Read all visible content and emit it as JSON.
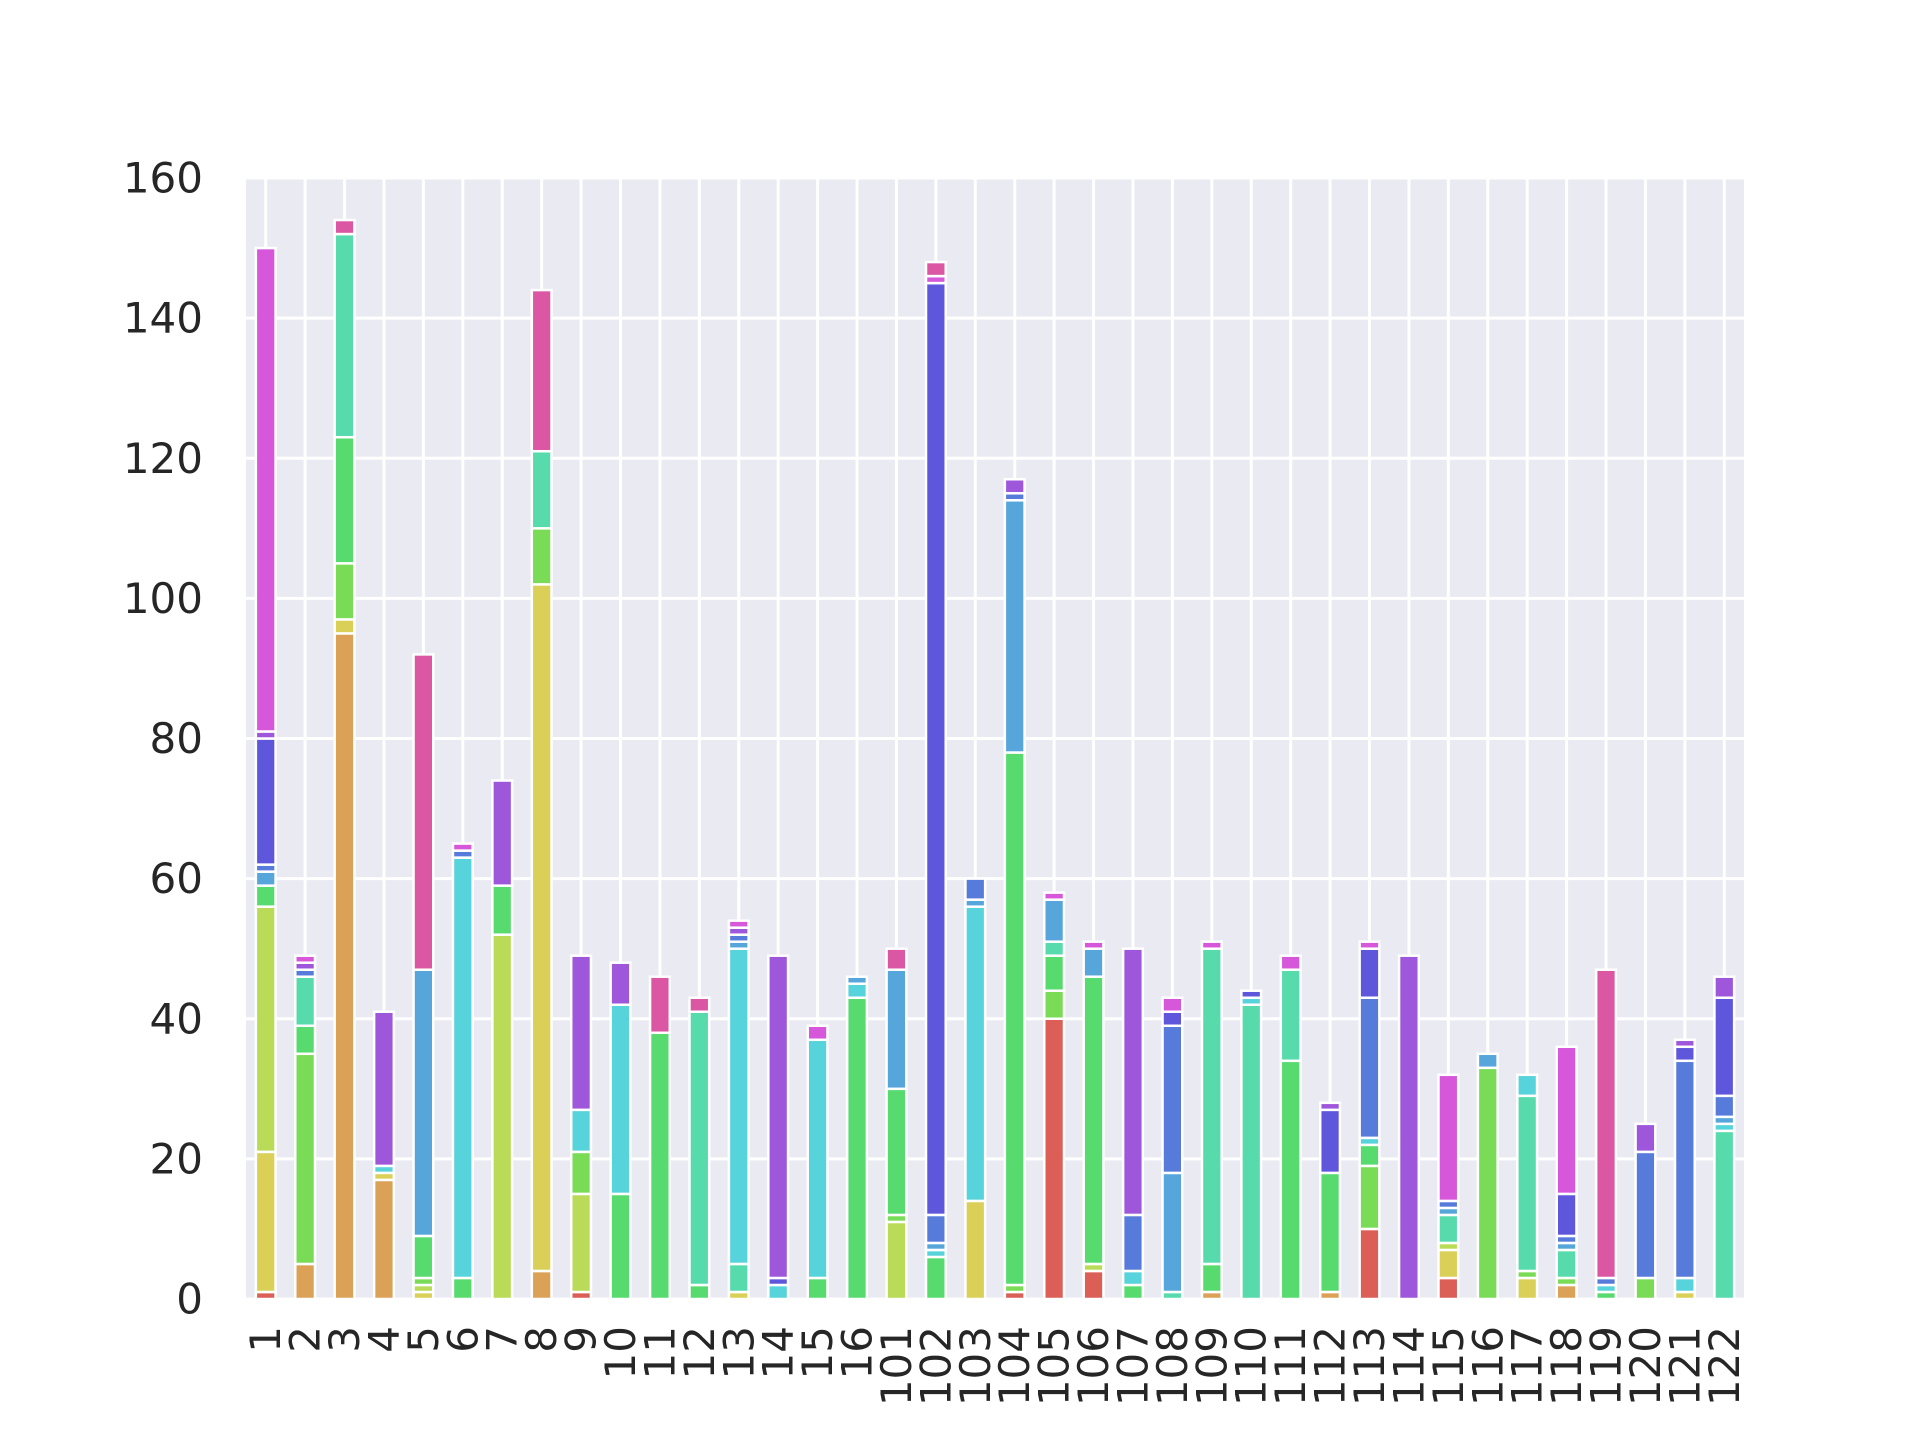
{
  "chart_data": {
    "type": "bar",
    "stacked": true,
    "grid": true,
    "background": "#eaeaf2",
    "categories": [
      "1",
      "2",
      "3",
      "4",
      "5",
      "6",
      "7",
      "8",
      "9",
      "10",
      "11",
      "12",
      "13",
      "14",
      "15",
      "16",
      "101",
      "102",
      "103",
      "104",
      "105",
      "106",
      "107",
      "108",
      "109",
      "110",
      "111",
      "112",
      "113",
      "114",
      "115",
      "116",
      "117",
      "118",
      "119",
      "120",
      "121",
      "122"
    ],
    "ylim": [
      0,
      160
    ],
    "yticks": [
      0,
      20,
      40,
      60,
      80,
      100,
      120,
      140,
      160
    ],
    "palette": [
      "#db5f57",
      "#dba157",
      "#dbd057",
      "#b9db57",
      "#7adb57",
      "#57db6f",
      "#57dbad",
      "#57d3db",
      "#57a6db",
      "#577bdb",
      "#5f57db",
      "#9e57db",
      "#d757db",
      "#db57a3"
    ],
    "stacks": [
      [
        [
          0,
          1
        ],
        [
          2,
          20
        ],
        [
          3,
          35
        ],
        [
          5,
          3
        ],
        [
          8,
          2
        ],
        [
          9,
          1
        ],
        [
          10,
          18
        ],
        [
          11,
          1
        ],
        [
          12,
          69
        ]
      ],
      [
        [
          1,
          5
        ],
        [
          4,
          30
        ],
        [
          5,
          4
        ],
        [
          6,
          7
        ],
        [
          9,
          1
        ],
        [
          11,
          1
        ],
        [
          12,
          1
        ]
      ],
      [
        [
          1,
          95
        ],
        [
          2,
          2
        ],
        [
          4,
          8
        ],
        [
          5,
          18
        ],
        [
          6,
          29
        ],
        [
          13,
          2
        ]
      ],
      [
        [
          1,
          17
        ],
        [
          2,
          1
        ],
        [
          7,
          1
        ],
        [
          11,
          22
        ]
      ],
      [
        [
          2,
          1
        ],
        [
          3,
          1
        ],
        [
          4,
          1
        ],
        [
          5,
          6
        ],
        [
          8,
          38
        ],
        [
          13,
          45
        ]
      ],
      [
        [
          5,
          3
        ],
        [
          7,
          60
        ],
        [
          9,
          1
        ],
        [
          12,
          1
        ]
      ],
      [
        [
          3,
          52
        ],
        [
          5,
          7
        ],
        [
          11,
          15
        ]
      ],
      [
        [
          1,
          4
        ],
        [
          2,
          98
        ],
        [
          4,
          8
        ],
        [
          6,
          11
        ],
        [
          13,
          23
        ]
      ],
      [
        [
          0,
          1
        ],
        [
          3,
          14
        ],
        [
          4,
          6
        ],
        [
          7,
          6
        ],
        [
          11,
          22
        ]
      ],
      [
        [
          5,
          15
        ],
        [
          7,
          27
        ],
        [
          11,
          6
        ]
      ],
      [
        [
          5,
          38
        ],
        [
          13,
          8
        ]
      ],
      [
        [
          5,
          2
        ],
        [
          6,
          39
        ],
        [
          13,
          2
        ]
      ],
      [
        [
          2,
          1
        ],
        [
          6,
          4
        ],
        [
          7,
          45
        ],
        [
          8,
          1
        ],
        [
          9,
          1
        ],
        [
          11,
          1
        ],
        [
          12,
          1
        ]
      ],
      [
        [
          7,
          2
        ],
        [
          10,
          1
        ],
        [
          11,
          46
        ]
      ],
      [
        [
          5,
          3
        ],
        [
          7,
          34
        ],
        [
          12,
          2
        ]
      ],
      [
        [
          5,
          43
        ],
        [
          7,
          2
        ],
        [
          8,
          1
        ]
      ],
      [
        [
          3,
          11
        ],
        [
          4,
          1
        ],
        [
          5,
          18
        ],
        [
          8,
          17
        ],
        [
          13,
          3
        ]
      ],
      [
        [
          5,
          6
        ],
        [
          7,
          1
        ],
        [
          8,
          1
        ],
        [
          9,
          4
        ],
        [
          10,
          133
        ],
        [
          12,
          1
        ],
        [
          13,
          2
        ]
      ],
      [
        [
          2,
          14
        ],
        [
          7,
          42
        ],
        [
          8,
          1
        ],
        [
          9,
          3
        ]
      ],
      [
        [
          0,
          1
        ],
        [
          4,
          1
        ],
        [
          5,
          76
        ],
        [
          8,
          36
        ],
        [
          9,
          1
        ],
        [
          11,
          2
        ]
      ],
      [
        [
          0,
          40
        ],
        [
          4,
          4
        ],
        [
          5,
          5
        ],
        [
          6,
          2
        ],
        [
          8,
          6
        ],
        [
          12,
          1
        ]
      ],
      [
        [
          0,
          4
        ],
        [
          3,
          1
        ],
        [
          5,
          41
        ],
        [
          8,
          4
        ],
        [
          12,
          1
        ]
      ],
      [
        [
          5,
          2
        ],
        [
          7,
          2
        ],
        [
          9,
          8
        ],
        [
          11,
          38
        ]
      ],
      [
        [
          6,
          1
        ],
        [
          8,
          17
        ],
        [
          9,
          21
        ],
        [
          10,
          2
        ],
        [
          12,
          2
        ]
      ],
      [
        [
          1,
          1
        ],
        [
          5,
          4
        ],
        [
          6,
          45
        ],
        [
          12,
          1
        ]
      ],
      [
        [
          6,
          42
        ],
        [
          7,
          1
        ],
        [
          10,
          1
        ]
      ],
      [
        [
          5,
          34
        ],
        [
          6,
          13
        ],
        [
          12,
          2
        ]
      ],
      [
        [
          1,
          1
        ],
        [
          5,
          17
        ],
        [
          10,
          9
        ],
        [
          11,
          1
        ]
      ],
      [
        [
          0,
          10
        ],
        [
          4,
          9
        ],
        [
          5,
          3
        ],
        [
          7,
          1
        ],
        [
          9,
          20
        ],
        [
          10,
          7
        ],
        [
          12,
          1
        ]
      ],
      [
        [
          11,
          49
        ]
      ],
      [
        [
          0,
          3
        ],
        [
          2,
          4
        ],
        [
          3,
          1
        ],
        [
          6,
          4
        ],
        [
          8,
          1
        ],
        [
          9,
          1
        ],
        [
          12,
          18
        ]
      ],
      [
        [
          4,
          33
        ],
        [
          8,
          2
        ]
      ],
      [
        [
          2,
          3
        ],
        [
          4,
          1
        ],
        [
          6,
          25
        ],
        [
          7,
          3
        ]
      ],
      [
        [
          1,
          2
        ],
        [
          4,
          1
        ],
        [
          6,
          4
        ],
        [
          8,
          1
        ],
        [
          9,
          1
        ],
        [
          10,
          6
        ],
        [
          12,
          21
        ]
      ],
      [
        [
          5,
          1
        ],
        [
          7,
          1
        ],
        [
          9,
          1
        ],
        [
          13,
          44
        ]
      ],
      [
        [
          4,
          3
        ],
        [
          9,
          18
        ],
        [
          11,
          4
        ]
      ],
      [
        [
          2,
          1
        ],
        [
          7,
          2
        ],
        [
          9,
          31
        ],
        [
          10,
          2
        ],
        [
          11,
          1
        ]
      ],
      [
        [
          6,
          24
        ],
        [
          7,
          1
        ],
        [
          8,
          1
        ],
        [
          9,
          3
        ],
        [
          10,
          14
        ],
        [
          11,
          3
        ]
      ]
    ]
  }
}
